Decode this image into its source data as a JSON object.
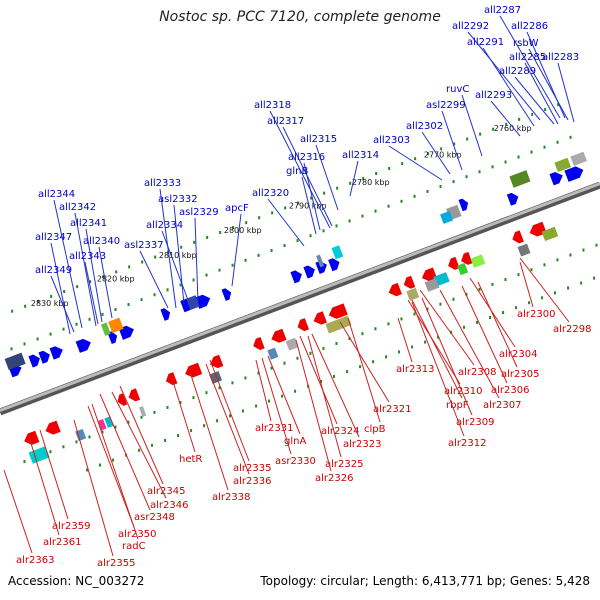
{
  "title": "Nostoc sp. PCC 7120, complete genome",
  "footer": {
    "accession": "Accession: NC_003272",
    "summary": "Topology: circular; Length: 6,413,771 bp; Genes: 5,428"
  },
  "colors": {
    "backbone": "#888888",
    "forward_gene": "#0000ee",
    "reverse_gene": "#ee0000",
    "forward_label": "#0000cc",
    "reverse_label": "#cc0000",
    "tick_dot": "#228822"
  },
  "ticks": [
    "2760 kbp",
    "2770 kbp",
    "2780 kbp",
    "2790 kbp",
    "2800 kbp",
    "2810 kbp",
    "2820 kbp",
    "2830 kbp"
  ],
  "top_genes": [
    "all2287",
    "all2292",
    "all2286",
    "all2291",
    "rsbW",
    "all2285",
    "all2283",
    "all2289",
    "ruvC",
    "all2293",
    "asl2299",
    "all2318",
    "all2302",
    "all2317",
    "all2303",
    "all2315",
    "all2316",
    "all2314",
    "glnB",
    "all2333",
    "asl2332",
    "asl2329",
    "apcF",
    "all2320",
    "all2344",
    "all2342",
    "all2341",
    "all2334",
    "all2347",
    "all2340",
    "asl2337",
    "all2343",
    "all2349"
  ],
  "bottom_genes": [
    "alr2300",
    "alr2298",
    "alr2313",
    "alr2304",
    "alr2308",
    "alr2305",
    "alr2310",
    "alr2306",
    "rbpF",
    "alr2307",
    "alr2309",
    "alr2321",
    "alr2312",
    "alr2331",
    "clpB",
    "alr2324",
    "glnA",
    "alr2323",
    "hetR",
    "asr2330",
    "alr2325",
    "alr2335",
    "alr2336",
    "alr2326",
    "alr2345",
    "alr2338",
    "alr2346",
    "asr2348",
    "alr2359",
    "alr2350",
    "radC",
    "alr2361",
    "alr2363",
    "alr2355"
  ]
}
